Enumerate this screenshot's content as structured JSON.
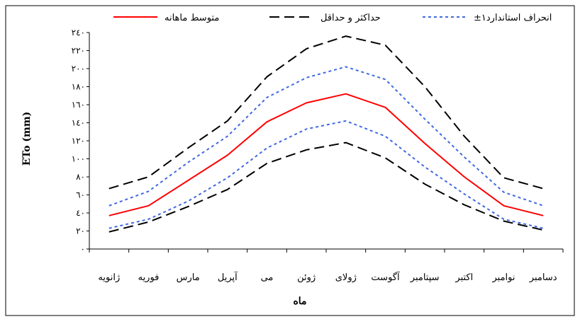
{
  "chart_data": {
    "type": "line",
    "title": "",
    "xlabel": "ماه",
    "ylabel": "ETo (mm)",
    "ylim": [
      0,
      240
    ],
    "y_ticks": [
      0,
      20,
      40,
      60,
      80,
      100,
      120,
      140,
      160,
      180,
      200,
      220,
      240
    ],
    "y_tick_labels": [
      "٠",
      "٢٠",
      "٤٠",
      "٦٠",
      "٨٠",
      "١٠٠",
      "١٢٠",
      "١٤٠",
      "١٦٠",
      "١٨٠",
      "٢٠٠",
      "٢٢٠",
      "٢٤٠"
    ],
    "categories": [
      "ژانویه",
      "فوریه",
      "مارس",
      "آپریل",
      "می",
      "ژوئن",
      "ژولای",
      "آگوست",
      "سپتامبر",
      "اکتبر",
      "نوامبر",
      "دسامبر"
    ],
    "legend_position": "top",
    "grid": false,
    "legend": [
      {
        "label": "متوسط ماهانه",
        "series": 0
      },
      {
        "label": "حداکثر و حداقل",
        "series": 1
      },
      {
        "label": "±۱انحراف استاندارد",
        "series": 3
      }
    ],
    "series": [
      {
        "key": "mean",
        "style": "solid",
        "color": "#ff0000",
        "values": [
          37,
          48,
          76,
          104,
          141,
          162,
          172,
          157,
          117,
          80,
          48,
          37
        ]
      },
      {
        "key": "max",
        "style": "dashed",
        "color": "#000000",
        "values": [
          67,
          80,
          112,
          142,
          191,
          222,
          236,
          226,
          180,
          125,
          79,
          67
        ]
      },
      {
        "key": "min",
        "style": "dashed",
        "color": "#000000",
        "values": [
          19,
          30,
          47,
          66,
          95,
          110,
          118,
          101,
          72,
          49,
          31,
          21
        ]
      },
      {
        "key": "mean_plus_sd",
        "style": "dotted",
        "color": "#4169e1",
        "values": [
          48,
          64,
          96,
          125,
          168,
          190,
          202,
          188,
          144,
          102,
          63,
          48
        ]
      },
      {
        "key": "mean_minus_sd",
        "style": "dotted",
        "color": "#4169e1",
        "values": [
          23,
          33,
          53,
          79,
          112,
          133,
          142,
          125,
          91,
          61,
          33,
          23
        ]
      }
    ]
  }
}
